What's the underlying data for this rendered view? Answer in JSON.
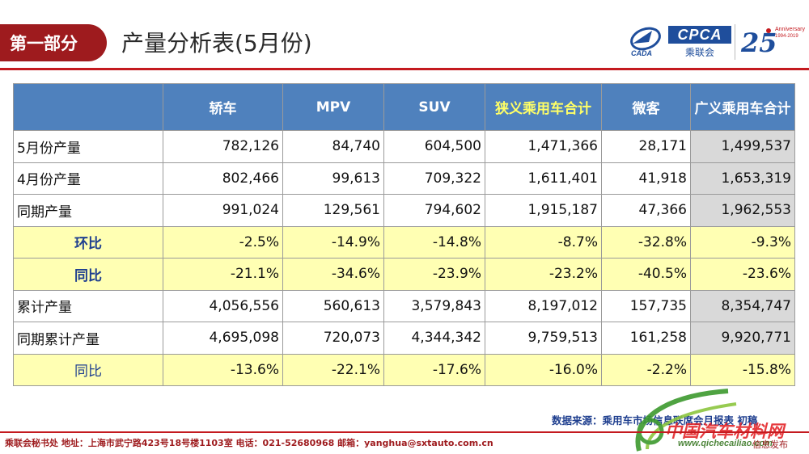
{
  "header": {
    "section_tab": "第一部分",
    "title": "产量分析表(5月份)",
    "logos": {
      "cada_text": "CADA",
      "cpca_text": "CPCA",
      "cpca_sub": "乘联会",
      "anniv_number": "25",
      "anniv_text": "Anniversary",
      "anniv_years": "1994-2019"
    }
  },
  "table": {
    "columns": [
      "",
      "轿车",
      "MPV",
      "SUV",
      "狭义乘用车合计",
      "微客",
      "广义乘用车合计"
    ],
    "rows": [
      {
        "label": "5月份产量",
        "values": [
          "782,126",
          "84,740",
          "604,500",
          "1,471,366",
          "28,171",
          "1,499,537"
        ]
      },
      {
        "label": "4月份产量",
        "values": [
          "802,466",
          "99,613",
          "709,322",
          "1,611,401",
          "41,918",
          "1,653,319"
        ]
      },
      {
        "label": "同期产量",
        "values": [
          "991,024",
          "129,561",
          "794,602",
          "1,915,187",
          "47,366",
          "1,962,553"
        ]
      },
      {
        "label": "环比",
        "values": [
          "-2.5%",
          "-14.9%",
          "-14.8%",
          "-8.7%",
          "-32.8%",
          "-9.3%"
        ]
      },
      {
        "label": "同比",
        "values": [
          "-21.1%",
          "-34.6%",
          "-23.9%",
          "-23.2%",
          "-40.5%",
          "-23.6%"
        ]
      },
      {
        "label": "累计产量",
        "values": [
          "4,056,556",
          "560,613",
          "3,579,843",
          "8,197,012",
          "157,735",
          "8,354,747"
        ]
      },
      {
        "label": "同期累计产量",
        "values": [
          "4,695,098",
          "720,073",
          "4,344,342",
          "9,759,513",
          "161,258",
          "9,920,771"
        ]
      },
      {
        "label": "同比",
        "values": [
          "-13.6%",
          "-22.1%",
          "-17.6%",
          "-16.0%",
          "-2.2%",
          "-15.8%"
        ]
      }
    ]
  },
  "source_note": "数据来源：乘用车市场信息联席会月报表 初稿",
  "footer": {
    "contact": "乘联会秘书处   地址：上海市武宁路423号18号楼1103室  电话：021-52680968   邮箱：yanghua@sxtauto.com.cn",
    "right_text": "信息发布"
  },
  "watermark": {
    "title": "中国汽车材料网",
    "url": "www.qichecailiao.com"
  },
  "colors": {
    "brand_red": "#9e1b1e",
    "header_blue": "#4f81bd",
    "highlight_yellow": "#ffffb3",
    "gray_cell": "#d9d9d9"
  }
}
